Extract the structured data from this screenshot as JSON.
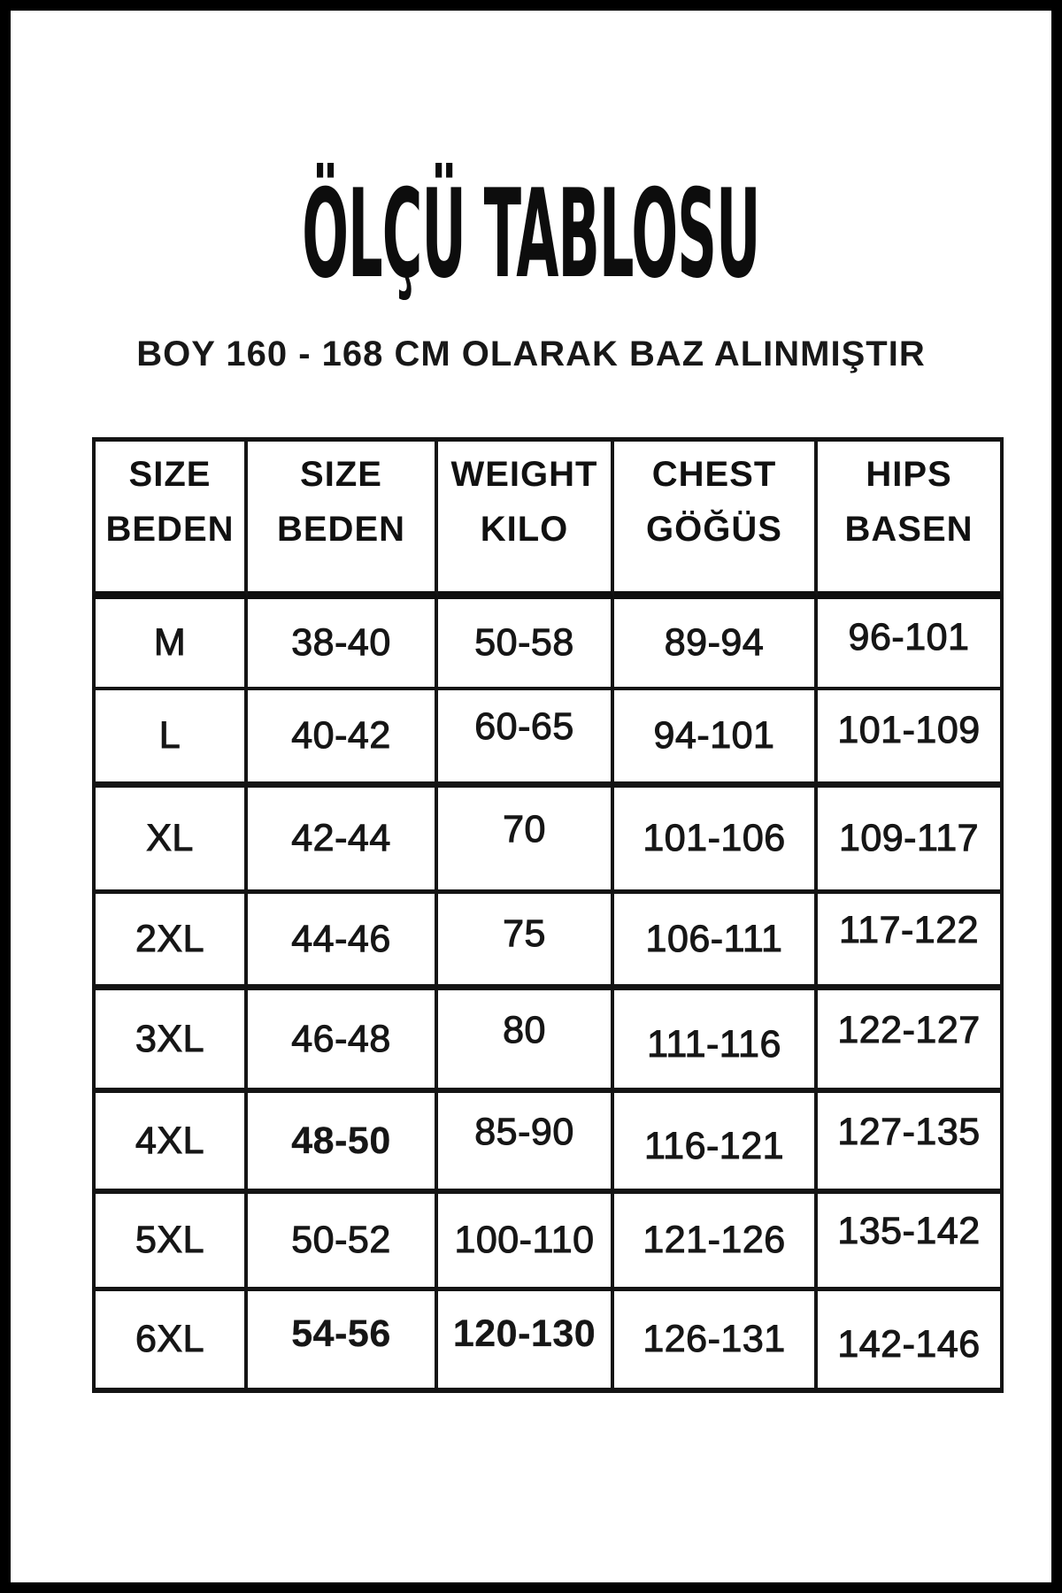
{
  "page": {
    "title": "ÖLÇÜ TABLOSU",
    "subtitle": "BOY 160 - 168 CM OLARAK BAZ ALINMIŞTIR"
  },
  "colors": {
    "ink": "#111111",
    "background": "#ffffff",
    "frame": "#000000"
  },
  "table": {
    "headers": [
      {
        "line1": "SIZE",
        "line2": "BEDEN"
      },
      {
        "line1": "SIZE",
        "line2": "BEDEN"
      },
      {
        "line1": "WEIGHT",
        "line2": "KILO"
      },
      {
        "line1": "CHEST",
        "line2": "GÖĞÜS"
      },
      {
        "line1": "HIPS",
        "line2": "BASEN"
      }
    ],
    "rows": [
      [
        "M",
        "38-40",
        "50-58",
        "89-94",
        "96-101"
      ],
      [
        "L",
        "40-42",
        "60-65",
        "94-101",
        "101-109"
      ],
      [
        "XL",
        "42-44",
        "70",
        "101-106",
        "109-117"
      ],
      [
        "2XL",
        "44-46",
        "75",
        "106-111",
        "117-122"
      ],
      [
        "3XL",
        "46-48",
        "80",
        "111-116",
        "122-127"
      ],
      [
        "4XL",
        "48-50",
        "85-90",
        "116-121",
        "127-135"
      ],
      [
        "5XL",
        "50-52",
        "100-110",
        "121-126",
        "135-142"
      ],
      [
        "6XL",
        "54-56",
        "120-130",
        "126-131",
        "142-146"
      ]
    ]
  }
}
